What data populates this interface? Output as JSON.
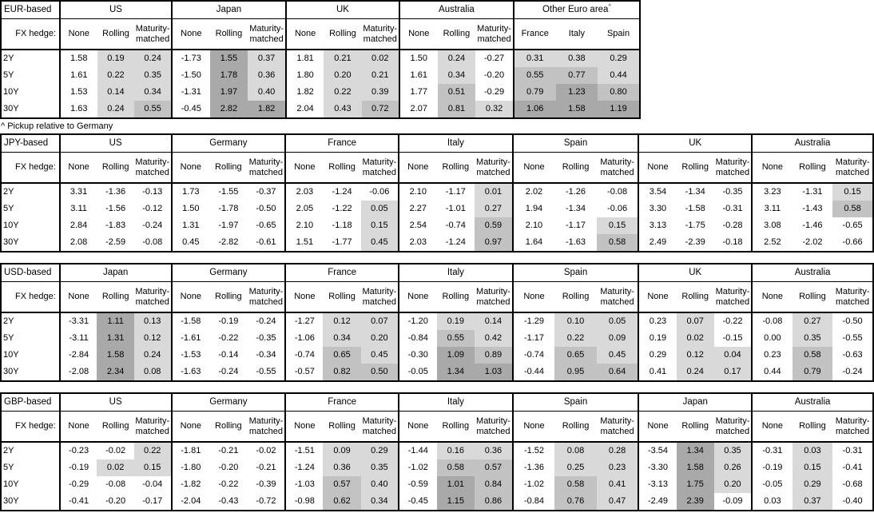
{
  "footnote": "^ Pickup relative to Germany",
  "labels": {
    "fx_hedge": "FX hedge:",
    "tenors": [
      "2Y",
      "5Y",
      "10Y",
      "30Y"
    ],
    "hedge_cols": [
      "None",
      "Rolling",
      "Maturity-matched"
    ]
  },
  "colors": {
    "shade_low": "#d9d9d9",
    "shade_mid": "#c2c2c2",
    "shade_high": "#a9a9a9",
    "border": "#000000"
  },
  "tables": [
    {
      "base": "EUR-based",
      "groups": [
        {
          "name": "US",
          "rows": [
            [
              1.58,
              0.19,
              0.24
            ],
            [
              1.61,
              0.22,
              0.35
            ],
            [
              1.53,
              0.14,
              0.34
            ],
            [
              1.63,
              0.24,
              0.55
            ]
          ]
        },
        {
          "name": "Japan",
          "rows": [
            [
              -1.73,
              1.55,
              0.37
            ],
            [
              -1.5,
              1.78,
              0.36
            ],
            [
              -1.31,
              1.97,
              0.4
            ],
            [
              -0.45,
              2.82,
              1.82
            ]
          ]
        },
        {
          "name": "UK",
          "rows": [
            [
              1.81,
              0.21,
              0.02
            ],
            [
              1.8,
              0.2,
              0.21
            ],
            [
              1.82,
              0.22,
              0.39
            ],
            [
              2.04,
              0.43,
              0.72
            ]
          ]
        },
        {
          "name": "Australia",
          "rows": [
            [
              1.5,
              0.24,
              -0.27
            ],
            [
              1.61,
              0.34,
              -0.2
            ],
            [
              1.77,
              0.51,
              -0.29
            ],
            [
              2.07,
              0.81,
              0.32
            ]
          ]
        },
        {
          "name": "Other Euro area",
          "sup": "^",
          "sub": [
            "France",
            "Italy",
            "Spain"
          ],
          "pickup": true,
          "rows": [
            [
              0.31,
              0.38,
              0.29
            ],
            [
              0.55,
              0.77,
              0.44
            ],
            [
              0.79,
              1.23,
              0.8
            ],
            [
              1.06,
              1.58,
              1.19
            ]
          ]
        }
      ]
    },
    {
      "base": "JPY-based",
      "groups": [
        {
          "name": "US",
          "rows": [
            [
              3.31,
              -1.36,
              -0.13
            ],
            [
              3.11,
              -1.56,
              -0.12
            ],
            [
              2.84,
              -1.83,
              -0.24
            ],
            [
              2.08,
              -2.59,
              -0.08
            ]
          ]
        },
        {
          "name": "Germany",
          "rows": [
            [
              1.73,
              -1.55,
              -0.37
            ],
            [
              1.5,
              -1.78,
              -0.5
            ],
            [
              1.31,
              -1.97,
              -0.65
            ],
            [
              0.45,
              -2.82,
              -0.61
            ]
          ]
        },
        {
          "name": "France",
          "rows": [
            [
              2.03,
              -1.24,
              -0.06
            ],
            [
              2.05,
              -1.22,
              0.05
            ],
            [
              2.1,
              -1.18,
              0.15
            ],
            [
              1.51,
              -1.77,
              0.45
            ]
          ]
        },
        {
          "name": "Italy",
          "rows": [
            [
              2.1,
              -1.17,
              0.01
            ],
            [
              2.27,
              -1.01,
              0.27
            ],
            [
              2.54,
              -0.74,
              0.59
            ],
            [
              2.03,
              -1.24,
              0.97
            ]
          ]
        },
        {
          "name": "Spain",
          "rows": [
            [
              2.02,
              -1.26,
              -0.08
            ],
            [
              1.94,
              -1.34,
              -0.06
            ],
            [
              2.1,
              -1.17,
              0.15
            ],
            [
              1.64,
              -1.63,
              0.58
            ]
          ]
        },
        {
          "name": "UK",
          "rows": [
            [
              3.54,
              -1.34,
              -0.35
            ],
            [
              3.3,
              -1.58,
              -0.31
            ],
            [
              3.13,
              -1.75,
              -0.28
            ],
            [
              2.49,
              -2.39,
              -0.18
            ]
          ]
        },
        {
          "name": "Australia",
          "rows": [
            [
              3.23,
              -1.31,
              0.15
            ],
            [
              3.11,
              -1.43,
              0.58
            ],
            [
              3.08,
              -1.46,
              -0.65
            ],
            [
              2.52,
              -2.02,
              -0.66
            ]
          ]
        }
      ]
    },
    {
      "base": "USD-based",
      "groups": [
        {
          "name": "Japan",
          "rows": [
            [
              -3.31,
              1.11,
              0.13
            ],
            [
              -3.11,
              1.31,
              0.12
            ],
            [
              -2.84,
              1.58,
              0.24
            ],
            [
              -2.08,
              2.34,
              0.08
            ]
          ]
        },
        {
          "name": "Germany",
          "rows": [
            [
              -1.58,
              -0.19,
              -0.24
            ],
            [
              -1.61,
              -0.22,
              -0.35
            ],
            [
              -1.53,
              -0.14,
              -0.34
            ],
            [
              -1.63,
              -0.24,
              -0.55
            ]
          ]
        },
        {
          "name": "France",
          "rows": [
            [
              -1.27,
              0.12,
              0.07
            ],
            [
              -1.06,
              0.34,
              0.2
            ],
            [
              -0.74,
              0.65,
              0.45
            ],
            [
              -0.57,
              0.82,
              0.5
            ]
          ]
        },
        {
          "name": "Italy",
          "rows": [
            [
              -1.2,
              0.19,
              0.14
            ],
            [
              -0.84,
              0.55,
              0.42
            ],
            [
              -0.3,
              1.09,
              0.89
            ],
            [
              -0.05,
              1.34,
              1.03
            ]
          ]
        },
        {
          "name": "Spain",
          "rows": [
            [
              -1.29,
              0.1,
              0.05
            ],
            [
              -1.17,
              0.22,
              0.09
            ],
            [
              -0.74,
              0.65,
              0.45
            ],
            [
              -0.44,
              0.95,
              0.64
            ]
          ]
        },
        {
          "name": "UK",
          "rows": [
            [
              0.23,
              0.07,
              -0.22
            ],
            [
              0.19,
              0.02,
              -0.15
            ],
            [
              0.29,
              0.12,
              0.04
            ],
            [
              0.41,
              0.24,
              0.17
            ]
          ]
        },
        {
          "name": "Australia",
          "rows": [
            [
              -0.08,
              0.27,
              -0.5
            ],
            [
              0.0,
              0.35,
              -0.55
            ],
            [
              0.23,
              0.58,
              -0.63
            ],
            [
              0.44,
              0.79,
              -0.24
            ]
          ]
        }
      ]
    },
    {
      "base": "GBP-based",
      "groups": [
        {
          "name": "US",
          "rows": [
            [
              -0.23,
              -0.02,
              0.22
            ],
            [
              -0.19,
              0.02,
              0.15
            ],
            [
              -0.29,
              -0.08,
              -0.04
            ],
            [
              -0.41,
              -0.2,
              -0.17
            ]
          ]
        },
        {
          "name": "Germany",
          "rows": [
            [
              -1.81,
              -0.21,
              -0.02
            ],
            [
              -1.8,
              -0.2,
              -0.21
            ],
            [
              -1.82,
              -0.22,
              -0.39
            ],
            [
              -2.04,
              -0.43,
              -0.72
            ]
          ]
        },
        {
          "name": "France",
          "rows": [
            [
              -1.51,
              0.09,
              0.29
            ],
            [
              -1.24,
              0.36,
              0.35
            ],
            [
              -1.03,
              0.57,
              0.4
            ],
            [
              -0.98,
              0.62,
              0.34
            ]
          ]
        },
        {
          "name": "Italy",
          "rows": [
            [
              -1.44,
              0.16,
              0.36
            ],
            [
              -1.02,
              0.58,
              0.57
            ],
            [
              -0.59,
              1.01,
              0.84
            ],
            [
              -0.45,
              1.15,
              0.86
            ]
          ]
        },
        {
          "name": "Spain",
          "rows": [
            [
              -1.52,
              0.08,
              0.28
            ],
            [
              -1.36,
              0.25,
              0.23
            ],
            [
              -1.02,
              0.58,
              0.41
            ],
            [
              -0.84,
              0.76,
              0.47
            ]
          ]
        },
        {
          "name": "Japan",
          "rows": [
            [
              -3.54,
              1.34,
              0.35
            ],
            [
              -3.3,
              1.58,
              0.26
            ],
            [
              -3.13,
              1.75,
              0.2
            ],
            [
              -2.49,
              2.39,
              -0.09
            ]
          ]
        },
        {
          "name": "Australia",
          "rows": [
            [
              -0.31,
              0.03,
              -0.31
            ],
            [
              -0.19,
              0.15,
              -0.41
            ],
            [
              -0.05,
              0.29,
              -0.68
            ],
            [
              0.03,
              0.37,
              -0.4
            ]
          ]
        }
      ]
    }
  ]
}
